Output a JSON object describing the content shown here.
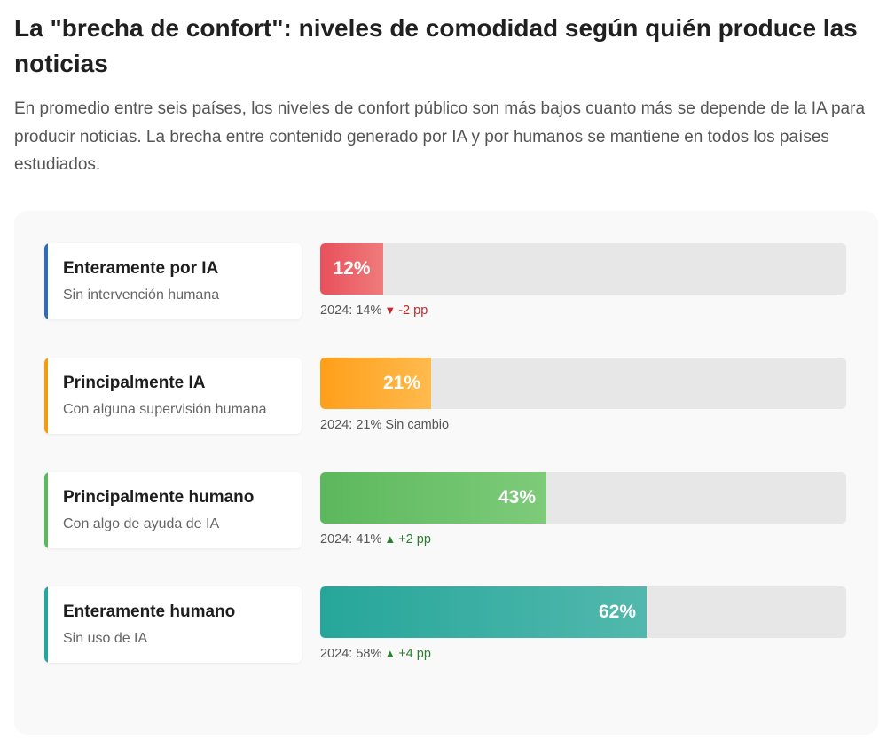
{
  "title": "La \"brecha de confort\": niveles de comodidad según quién produce las noticias",
  "subtitle": "En promedio entre seis países, los niveles de confort público son más bajos cuanto más se depende de la IA para producir noticias. La brecha entre contenido generado por IA y por humanos se mantiene en todos los países estudiados.",
  "chart_data": {
    "type": "bar",
    "orientation": "horizontal",
    "title": "La \"brecha de confort\": niveles de comodidad según quién produce las noticias",
    "xlim": [
      0,
      100
    ],
    "unit": "%",
    "categories": [
      "Enteramente por IA",
      "Principalmente IA",
      "Principalmente humano",
      "Enteramente humano"
    ],
    "descriptions": [
      "Sin intervención humana",
      "Con alguna supervisión humana",
      "Con algo de ayuda de IA",
      "Sin uso de IA"
    ],
    "values": [
      12,
      21,
      43,
      62
    ],
    "value_labels": [
      "12%",
      "21%",
      "43%",
      "62%"
    ],
    "previous_year": "2024",
    "previous_values": [
      14,
      21,
      41,
      58
    ],
    "comparison_labels": [
      "2024: 14%",
      "2024: 21%",
      "2024: 41%",
      "2024: 58%"
    ],
    "change_labels": [
      "-2 pp",
      "Sin cambio",
      "+2 pp",
      "+4 pp"
    ],
    "change_direction": [
      "down",
      "none",
      "up",
      "up"
    ],
    "accent_colors": [
      "#2e6db4",
      "#f39c12",
      "#5cb85c",
      "#26a69a"
    ],
    "fill_colors": [
      [
        "#e8505b",
        "#ef7b7b"
      ],
      [
        "#ff9f1a",
        "#ffba4d"
      ],
      [
        "#5cb85c",
        "#7ecb7a"
      ],
      [
        "#26a69a",
        "#52b8ad"
      ]
    ],
    "change_colors": {
      "down": "#c62828",
      "up": "#2e7d32",
      "none": "#555555"
    },
    "triangle_glyphs": {
      "down": "▼",
      "up": "▲",
      "none": ""
    }
  }
}
